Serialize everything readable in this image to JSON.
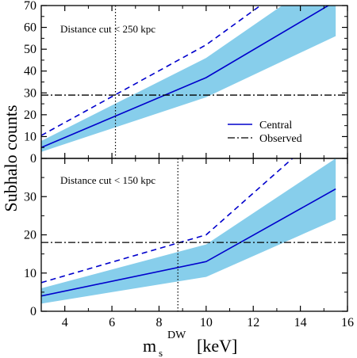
{
  "colors": {
    "band": "#87CEEB",
    "central": "#0000CC",
    "dashed": "#0000CC",
    "observed": "#000000",
    "cut_line": "#000000"
  },
  "shared": {
    "ylabel": "Subhalo counts",
    "xlabel_main": "m",
    "xlabel_sub": "s",
    "xlabel_sup": "DW",
    "xlabel_unit": "[keV]",
    "xlim": [
      3,
      16
    ],
    "xticks": [
      4,
      6,
      8,
      10,
      12,
      14,
      16
    ]
  },
  "legend": {
    "central": "Central",
    "observed": "Observed",
    "placement": "inside-right, top panel"
  },
  "chart_data": [
    {
      "type": "area",
      "panel": "top",
      "annotation": "Distance cut < 250 kpc",
      "ylim": [
        0,
        70
      ],
      "yticks": [
        0,
        10,
        20,
        30,
        40,
        50,
        60,
        70
      ],
      "x": [
        3,
        10,
        15.5
      ],
      "series": [
        {
          "name": "Central",
          "style": "solid",
          "values": [
            5,
            37,
            72
          ]
        },
        {
          "style": "dashed",
          "values": [
            10.5,
            52,
            95
          ]
        },
        {
          "style": "band-upper",
          "values": [
            8,
            46,
            87
          ]
        },
        {
          "style": "band-lower",
          "values": [
            3,
            28,
            56
          ]
        }
      ],
      "observed": 29,
      "distance_cut_x": 6.15
    },
    {
      "type": "area",
      "panel": "bottom",
      "annotation": "Distance cut < 150 kpc",
      "ylim": [
        0,
        40
      ],
      "yticks": [
        0,
        10,
        20,
        30
      ],
      "x": [
        3,
        10,
        15.5
      ],
      "series": [
        {
          "name": "Central",
          "style": "solid",
          "values": [
            4,
            13,
            32
          ]
        },
        {
          "style": "dashed",
          "values": [
            7.5,
            20,
            50
          ]
        },
        {
          "style": "band-upper",
          "values": [
            6,
            17.5,
            40
          ]
        },
        {
          "style": "band-lower",
          "values": [
            2,
            9,
            24
          ]
        }
      ],
      "observed": 18,
      "distance_cut_x": 8.8
    }
  ]
}
